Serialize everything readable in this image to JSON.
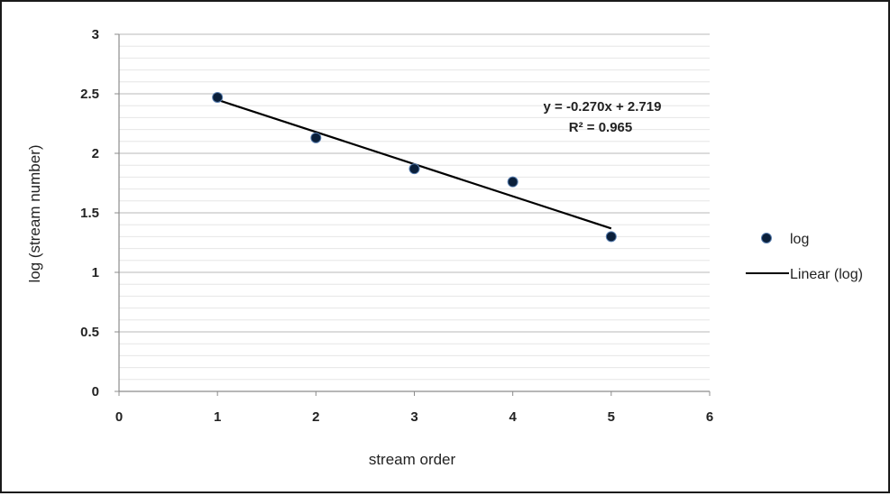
{
  "chart_data": {
    "type": "scatter",
    "xlabel": "stream order",
    "ylabel": "log (stream number)",
    "xlim": [
      0,
      6
    ],
    "ylim": [
      0,
      3
    ],
    "x_ticks": [
      "0",
      "1",
      "2",
      "3",
      "4",
      "5",
      "6"
    ],
    "y_ticks": [
      "0",
      "0.5",
      "1",
      "1.5",
      "2",
      "2.5",
      "3"
    ],
    "grid": "horizontal major and minor",
    "series": [
      {
        "name": "log",
        "marker": "circle",
        "color": "#0a1f3a",
        "x": [
          1,
          2,
          3,
          4,
          5
        ],
        "y": [
          2.47,
          2.13,
          1.87,
          1.76,
          1.3
        ]
      }
    ],
    "trendline": {
      "name": "Linear (log)",
      "slope": -0.27,
      "intercept": 2.719,
      "x_range": [
        1,
        5
      ],
      "color": "#000000"
    },
    "equation_label": "y = -0.270x + 2.719",
    "r2_label": "R² = 0.965",
    "legend": {
      "placement": "right",
      "entries": [
        "log",
        "Linear (log)"
      ]
    }
  }
}
